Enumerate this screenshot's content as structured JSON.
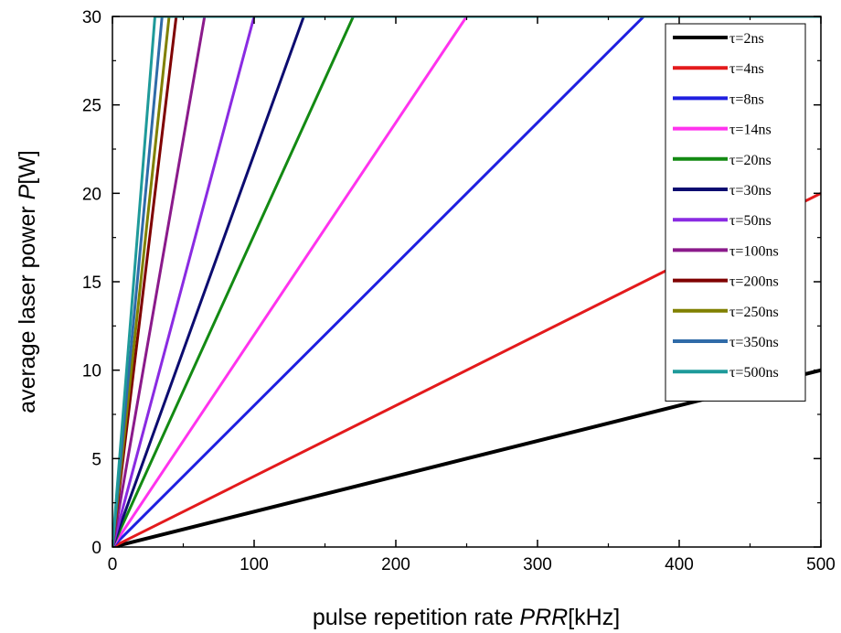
{
  "chart_data": {
    "type": "line",
    "title": "",
    "xlabel": {
      "prefix": "pulse repetition rate ",
      "italic": "PRR",
      "suffix": "[kHz]"
    },
    "ylabel": {
      "prefix": "average laser power ",
      "italic": "P",
      "suffix": "[W]"
    },
    "xlim": [
      0,
      500
    ],
    "ylim": [
      0,
      30
    ],
    "xticks": [
      0,
      100,
      200,
      300,
      400,
      500
    ],
    "yticks": [
      0,
      5,
      10,
      15,
      20,
      25,
      30
    ],
    "grid": false,
    "legend_position": "top-right",
    "series": [
      {
        "name": "τ=2ns",
        "color": "#000000",
        "points": [
          [
            0,
            0
          ],
          [
            500,
            10
          ]
        ]
      },
      {
        "name": "τ=4ns",
        "color": "#e31a1c",
        "points": [
          [
            0,
            0
          ],
          [
            500,
            20
          ]
        ]
      },
      {
        "name": "τ=8ns",
        "color": "#1f1fe0",
        "points": [
          [
            0,
            0
          ],
          [
            375,
            30
          ],
          [
            500,
            30
          ]
        ]
      },
      {
        "name": "τ=14ns",
        "color": "#ff33ee",
        "points": [
          [
            0,
            0
          ],
          [
            250,
            30
          ],
          [
            500,
            30
          ]
        ]
      },
      {
        "name": "τ=20ns",
        "color": "#138a13",
        "points": [
          [
            0,
            0
          ],
          [
            170,
            30
          ],
          [
            500,
            30
          ]
        ]
      },
      {
        "name": "τ=30ns",
        "color": "#0c0c70",
        "points": [
          [
            0,
            0
          ],
          [
            135,
            30
          ],
          [
            500,
            30
          ]
        ]
      },
      {
        "name": "τ=50ns",
        "color": "#8a2be2",
        "points": [
          [
            0,
            0
          ],
          [
            100,
            30
          ],
          [
            500,
            30
          ]
        ]
      },
      {
        "name": "τ=100ns",
        "color": "#8b1a8b",
        "points": [
          [
            0,
            0
          ],
          [
            65,
            30
          ],
          [
            500,
            30
          ]
        ]
      },
      {
        "name": "τ=200ns",
        "color": "#7f0000",
        "points": [
          [
            0,
            0
          ],
          [
            45,
            30
          ],
          [
            500,
            30
          ]
        ]
      },
      {
        "name": "τ=250ns",
        "color": "#808000",
        "points": [
          [
            0,
            0
          ],
          [
            40,
            30
          ],
          [
            500,
            30
          ]
        ]
      },
      {
        "name": "τ=350ns",
        "color": "#2f6ba8",
        "points": [
          [
            0,
            0
          ],
          [
            35,
            30
          ],
          [
            500,
            30
          ]
        ]
      },
      {
        "name": "τ=500ns",
        "color": "#1e9a9a",
        "points": [
          [
            0,
            0
          ],
          [
            30,
            30
          ],
          [
            500,
            30
          ]
        ]
      }
    ]
  }
}
